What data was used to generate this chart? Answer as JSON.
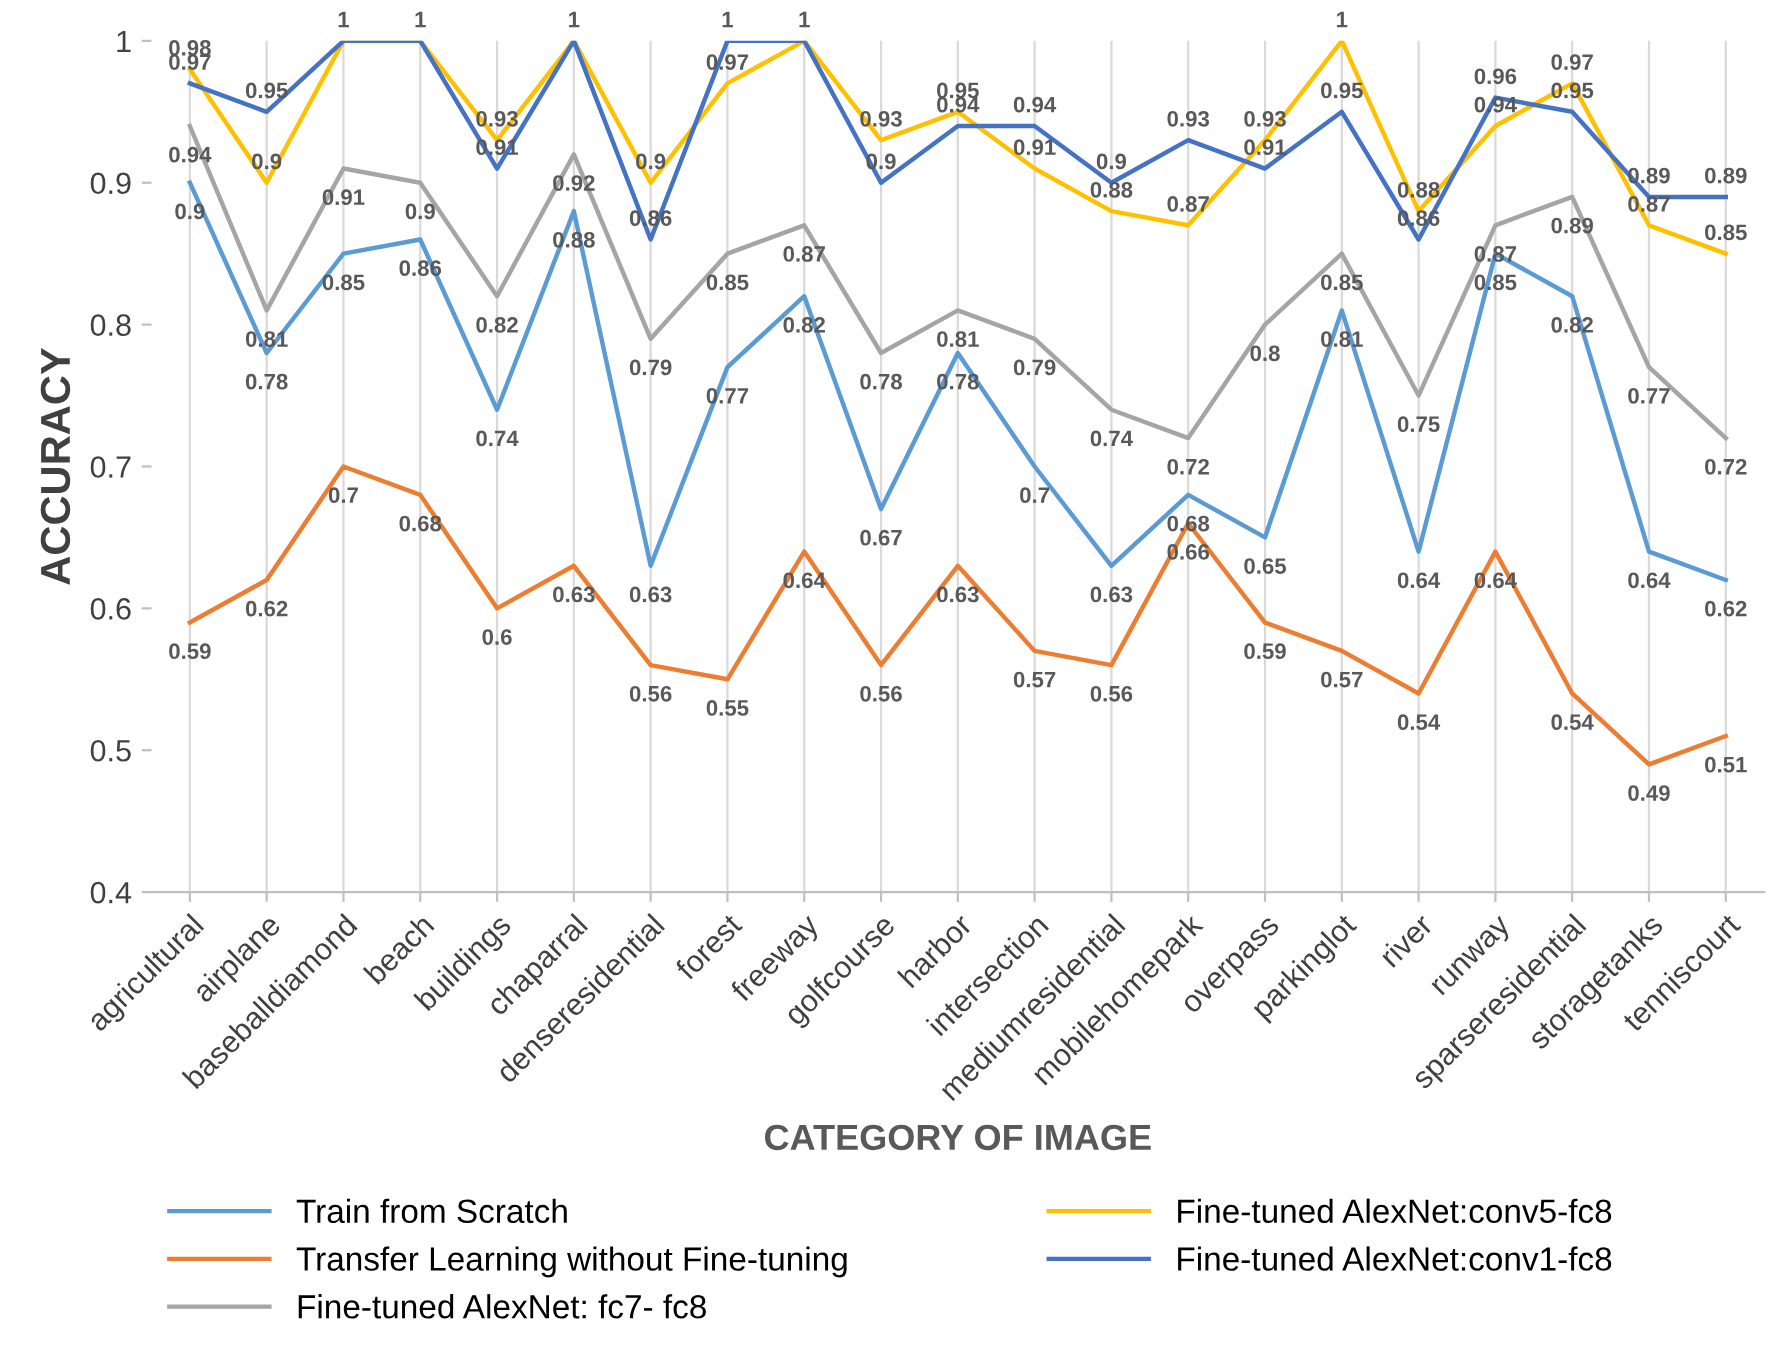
{
  "chart_data": {
    "type": "line",
    "xlabel": "CATEGORY OF IMAGE",
    "ylabel": "ACCURACY",
    "categories": [
      "agricultural",
      "airplane",
      "baseballdiamond",
      "beach",
      "buildings",
      "chaparral",
      "denseresidential",
      "forest",
      "freeway",
      "golfcourse",
      "harbor",
      "intersection",
      "mediumresidential",
      "mobilehomepark",
      "overpass",
      "parkinglot",
      "river",
      "runway",
      "sparseresidential",
      "storagetanks",
      "tenniscourt"
    ],
    "series": [
      {
        "name": "Train from Scratch",
        "color": "#5b9bd5",
        "values": [
          0.9,
          0.78,
          0.85,
          0.86,
          0.74,
          0.88,
          0.63,
          0.77,
          0.82,
          0.67,
          0.78,
          0.7,
          0.63,
          0.68,
          0.65,
          0.81,
          0.64,
          0.85,
          0.82,
          0.64,
          0.62
        ]
      },
      {
        "name": "Transfer Learning without Fine-tuning",
        "color": "#ed7d31",
        "values": [
          0.59,
          0.62,
          0.7,
          0.68,
          0.6,
          0.63,
          0.56,
          0.55,
          0.64,
          0.56,
          0.63,
          0.57,
          0.56,
          0.66,
          0.59,
          0.57,
          0.54,
          0.64,
          0.54,
          0.49,
          0.51
        ]
      },
      {
        "name": "Fine-tuned AlexNet: fc7- fc8",
        "color": "#a5a5a5",
        "values": [
          0.94,
          0.81,
          0.91,
          0.9,
          0.82,
          0.92,
          0.79,
          0.85,
          0.87,
          0.78,
          0.81,
          0.79,
          0.74,
          0.72,
          0.8,
          0.85,
          0.75,
          0.87,
          0.89,
          0.77,
          0.72
        ]
      },
      {
        "name": "Fine-tuned AlexNet:conv5-fc8",
        "color": "#ffc000",
        "values": [
          0.98,
          0.9,
          1,
          1,
          0.93,
          1,
          0.9,
          0.97,
          1,
          0.93,
          0.95,
          0.91,
          0.88,
          0.87,
          0.93,
          1,
          0.88,
          0.94,
          0.97,
          0.87,
          0.85
        ]
      },
      {
        "name": "Fine-tuned AlexNet:conv1-fc8",
        "color": "#4472c4",
        "values": [
          0.97,
          0.95,
          1,
          1,
          0.91,
          1,
          0.86,
          1,
          1,
          0.9,
          0.94,
          0.94,
          0.9,
          0.93,
          0.91,
          0.95,
          0.86,
          0.96,
          0.95,
          0.89,
          0.89
        ],
        "value_labels": [
          "0.97",
          "0.95",
          null,
          null,
          "0.91",
          null,
          "0.86",
          "1",
          null,
          "0.9",
          "0.94",
          "0.94",
          "0.9",
          "0.93",
          "0.91",
          "0.95",
          "0.86",
          "0.96",
          "0.95",
          "0.89",
          "0.89"
        ]
      }
    ],
    "ylim": [
      0.4,
      1
    ],
    "yticks": [
      0.4,
      0.5,
      0.6,
      0.7,
      0.8,
      0.9,
      1
    ],
    "grid": "x",
    "legend": "bottom",
    "data_labels": true,
    "marker": "none",
    "line_style": "solid"
  }
}
